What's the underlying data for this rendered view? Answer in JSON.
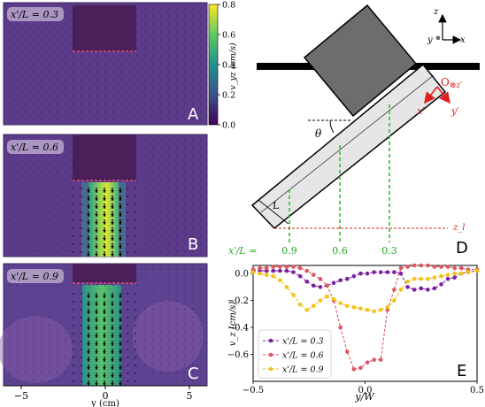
{
  "panels": {
    "A": {
      "letter": "A",
      "label": "x'/L = 0.3"
    },
    "B": {
      "letter": "B",
      "label": "x'/L = 0.6"
    },
    "C": {
      "letter": "C",
      "label": "x'/L = 0.9"
    },
    "D": {
      "letter": "D"
    },
    "E": {
      "letter": "E"
    }
  },
  "colorbar": {
    "label": "v_yz (cm/s)",
    "ticks": [
      "0.8",
      "0.6",
      "0.4",
      "0.2",
      "0.0"
    ],
    "ticks_values": [
      0.8,
      0.6,
      0.4,
      0.2,
      0.0
    ],
    "colormap": [
      "#440154",
      "#3b528b",
      "#21918c",
      "#5ec962",
      "#fde725"
    ]
  },
  "map_xaxis": {
    "ticks": [
      "−5",
      "0",
      "5"
    ],
    "label": "y (cm)"
  },
  "diagram": {
    "axes": {
      "z": "z",
      "y": "y",
      "x": "x",
      "y_mark": "⊗"
    },
    "frame": {
      "origin": "O",
      "z_prime": "⊗z′",
      "x_prime": "x′",
      "y_prime": "y′"
    },
    "theta": "θ",
    "length_label": "L",
    "z_l": "z_l",
    "positions_prefix": "x′/L =",
    "positions": [
      "0.9",
      "0.6",
      "0.3"
    ],
    "colors": {
      "plate": "#6d6d6d",
      "tube": "#e6e6e6",
      "frame": "#e02020",
      "marker": "#22bb22",
      "floor": "#000000"
    }
  },
  "chart_data": {
    "type": "line",
    "xlabel": "y/W",
    "ylabel": "v_z (cm/s)",
    "xlim": [
      -0.5,
      0.5
    ],
    "ylim": [
      -0.8,
      0.06
    ],
    "xticks": [
      "−0.5",
      "0.0",
      "0.5"
    ],
    "xticks_values": [
      -0.5,
      0.0,
      0.5
    ],
    "yticks": [
      "0.0",
      "−0.2",
      "−0.4",
      "−0.6"
    ],
    "yticks_values": [
      0.0,
      -0.2,
      -0.4,
      -0.6
    ],
    "legend_position": "lower-left",
    "series": [
      {
        "name": "x'/L = 0.3",
        "color": "#7b1fa2",
        "x": [
          -0.5,
          -0.47,
          -0.44,
          -0.41,
          -0.38,
          -0.35,
          -0.32,
          -0.29,
          -0.26,
          -0.23,
          -0.2,
          -0.17,
          -0.14,
          -0.11,
          -0.08,
          -0.05,
          -0.02,
          0.01,
          0.04,
          0.07,
          0.1,
          0.13,
          0.16,
          0.19,
          0.22,
          0.25,
          0.28,
          0.31,
          0.34,
          0.37,
          0.4,
          0.43,
          0.46,
          0.5
        ],
        "y": [
          0.02,
          0.02,
          0.02,
          0.02,
          0.02,
          0.02,
          0.01,
          -0.02,
          -0.06,
          -0.09,
          -0.1,
          -0.09,
          -0.07,
          -0.05,
          -0.04,
          -0.02,
          0.0,
          0.0,
          0.01,
          0.01,
          0.01,
          0.01,
          0.0,
          -0.1,
          -0.12,
          -0.11,
          -0.12,
          -0.11,
          -0.08,
          -0.04,
          -0.03,
          0.0,
          0.01,
          0.02
        ]
      },
      {
        "name": "x'/L = 0.6",
        "color": "#e05562",
        "x": [
          -0.5,
          -0.47,
          -0.44,
          -0.41,
          -0.38,
          -0.35,
          -0.32,
          -0.29,
          -0.26,
          -0.23,
          -0.2,
          -0.17,
          -0.14,
          -0.11,
          -0.08,
          -0.05,
          -0.02,
          0.01,
          0.04,
          0.07,
          0.1,
          0.13,
          0.16,
          0.19,
          0.22,
          0.25,
          0.28,
          0.31,
          0.34,
          0.37,
          0.4,
          0.43,
          0.46,
          0.5
        ],
        "y": [
          0.03,
          0.04,
          0.04,
          0.05,
          0.05,
          0.05,
          0.05,
          0.04,
          0.02,
          -0.01,
          -0.04,
          -0.09,
          -0.2,
          -0.4,
          -0.58,
          -0.71,
          -0.7,
          -0.66,
          -0.64,
          -0.64,
          -0.27,
          -0.12,
          0.04,
          0.05,
          0.06,
          0.06,
          0.06,
          0.05,
          0.05,
          0.05,
          0.04,
          0.04,
          0.03,
          0.03
        ]
      },
      {
        "name": "x'/L = 0.9",
        "color": "#f2c318",
        "x": [
          -0.5,
          -0.47,
          -0.44,
          -0.41,
          -0.38,
          -0.35,
          -0.32,
          -0.29,
          -0.26,
          -0.23,
          -0.2,
          -0.17,
          -0.14,
          -0.11,
          -0.08,
          -0.05,
          -0.02,
          0.01,
          0.04,
          0.07,
          0.1,
          0.13,
          0.16,
          0.19,
          0.22,
          0.25,
          0.28,
          0.31,
          0.34,
          0.37,
          0.4,
          0.43,
          0.46,
          0.5
        ],
        "y": [
          0.01,
          0.0,
          -0.01,
          -0.02,
          -0.05,
          -0.1,
          -0.16,
          -0.23,
          -0.27,
          -0.24,
          -0.2,
          -0.17,
          -0.19,
          -0.22,
          -0.24,
          -0.25,
          -0.26,
          -0.27,
          -0.28,
          -0.27,
          -0.25,
          -0.2,
          -0.12,
          -0.06,
          -0.04,
          -0.04,
          -0.04,
          -0.03,
          -0.02,
          -0.01,
          0.0,
          0.0,
          0.01,
          0.02
        ]
      }
    ]
  }
}
